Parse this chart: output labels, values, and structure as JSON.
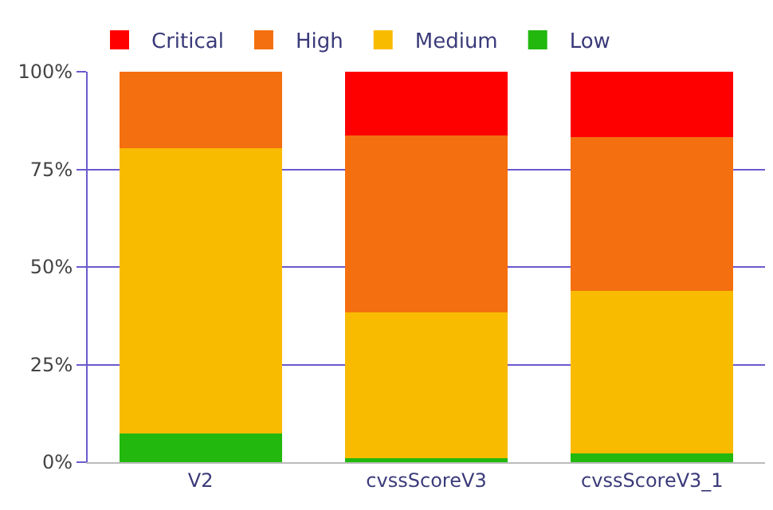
{
  "chart_data": {
    "type": "bar",
    "stacked": true,
    "categories": [
      "V2",
      "cvssScoreV3",
      "cvssScoreV3_1"
    ],
    "series": [
      {
        "name": "Low",
        "color": "#22b80e",
        "values": [
          7.3,
          1.0,
          2.2
        ]
      },
      {
        "name": "Medium",
        "color": "#f9bb00",
        "values": [
          73.1,
          37.3,
          41.7
        ]
      },
      {
        "name": "High",
        "color": "#f46f0f",
        "values": [
          19.6,
          45.3,
          39.3
        ]
      },
      {
        "name": "Critical",
        "color": "#fe0000",
        "values": [
          null,
          16.4,
          16.8
        ]
      }
    ],
    "ylim": [
      0,
      100
    ],
    "yticks": [
      {
        "value": 0,
        "label": "0%"
      },
      {
        "value": 25,
        "label": "25%"
      },
      {
        "value": 50,
        "label": "50%"
      },
      {
        "value": 75,
        "label": "75%"
      },
      {
        "value": 100,
        "label": "100%"
      }
    ],
    "grid": "y",
    "legend": "top left"
  }
}
